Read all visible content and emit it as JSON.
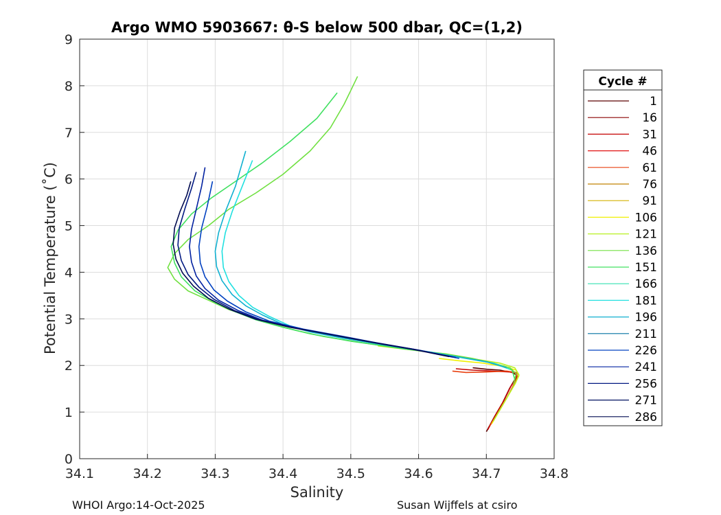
{
  "footer": {
    "left_credit": "WHOI Argo:14-Oct-2025",
    "right_credit": "Susan Wijffels at csiro"
  },
  "chart_data": {
    "type": "line",
    "title": "Argo WMO 5903667: θ-S below 500 dbar,  QC=(1,2)",
    "xlabel": "Salinity",
    "ylabel": "Potential Temperature (˚C)",
    "xlim": [
      34.1,
      34.8
    ],
    "ylim": [
      0,
      9
    ],
    "xticks": [
      34.1,
      34.2,
      34.3,
      34.4,
      34.5,
      34.6,
      34.7,
      34.8
    ],
    "xtick_labels": [
      "34.1",
      "34.2",
      "34.3",
      "34.4",
      "34.5",
      "34.6",
      "34.7",
      "34.8"
    ],
    "yticks": [
      0,
      1,
      2,
      3,
      4,
      5,
      6,
      7,
      8,
      9
    ],
    "ytick_labels": [
      "0",
      "1",
      "2",
      "3",
      "4",
      "5",
      "6",
      "7",
      "8",
      "9"
    ],
    "grid": true,
    "legend": {
      "title": "Cycle #",
      "placement": "outside-right",
      "entries": [
        {
          "label": "1",
          "color": "#5a0000"
        },
        {
          "label": "16",
          "color": "#8a0000"
        },
        {
          "label": "31",
          "color": "#c40000"
        },
        {
          "label": "46",
          "color": "#e01010"
        },
        {
          "label": "61",
          "color": "#e84010"
        },
        {
          "label": "76",
          "color": "#c08000"
        },
        {
          "label": "91",
          "color": "#d4b000"
        },
        {
          "label": "106",
          "color": "#f0f000"
        },
        {
          "label": "121",
          "color": "#b8f020"
        },
        {
          "label": "136",
          "color": "#70e040"
        },
        {
          "label": "151",
          "color": "#40e060"
        },
        {
          "label": "166",
          "color": "#30e0b0"
        },
        {
          "label": "181",
          "color": "#20e0e0"
        },
        {
          "label": "196",
          "color": "#10b0d0"
        },
        {
          "label": "211",
          "color": "#0070a0"
        },
        {
          "label": "226",
          "color": "#0040c0"
        },
        {
          "label": "241",
          "color": "#0020a0"
        },
        {
          "label": "256",
          "color": "#001880"
        },
        {
          "label": "271",
          "color": "#001060"
        },
        {
          "label": "286",
          "color": "#000a50"
        }
      ]
    },
    "series": [
      {
        "color": "#5a0000",
        "x": [
          34.7,
          34.712,
          34.724,
          34.734,
          34.742,
          34.744,
          34.738,
          34.72,
          34.7,
          34.68
        ],
        "y": [
          0.58,
          0.9,
          1.2,
          1.5,
          1.7,
          1.8,
          1.85,
          1.9,
          1.92,
          1.95
        ]
      },
      {
        "color": "#c40000",
        "x": [
          34.702,
          34.714,
          34.726,
          34.736,
          34.744,
          34.745,
          34.735,
          34.71,
          34.68,
          34.655
        ],
        "y": [
          0.62,
          0.95,
          1.25,
          1.55,
          1.72,
          1.82,
          1.86,
          1.88,
          1.9,
          1.93
        ]
      },
      {
        "color": "#e84010",
        "x": [
          34.705,
          34.718,
          34.73,
          34.74,
          34.746,
          34.744,
          34.73,
          34.7,
          34.67,
          34.65
        ],
        "y": [
          0.7,
          1.0,
          1.3,
          1.58,
          1.75,
          1.85,
          1.88,
          1.86,
          1.85,
          1.88
        ]
      },
      {
        "color": "#f0f000",
        "x": [
          34.708,
          34.72,
          34.732,
          34.742,
          34.748,
          34.744,
          34.725,
          34.695,
          34.66,
          34.63
        ],
        "y": [
          0.75,
          1.05,
          1.35,
          1.6,
          1.78,
          1.9,
          1.98,
          2.05,
          2.1,
          2.15
        ]
      },
      {
        "color": "#b8f020",
        "x": [
          34.71,
          34.722,
          34.734,
          34.743,
          34.748,
          34.742,
          34.72,
          34.69,
          34.655,
          34.62,
          34.58,
          34.54
        ],
        "y": [
          0.8,
          1.1,
          1.4,
          1.62,
          1.8,
          1.95,
          2.05,
          2.12,
          2.2,
          2.28,
          2.35,
          2.42
        ]
      },
      {
        "color": "#70e040",
        "x": [
          34.74,
          34.744,
          34.735,
          34.71,
          34.68,
          34.64,
          34.58,
          34.52,
          34.46,
          34.42,
          34.38,
          34.35,
          34.32,
          34.29,
          34.26,
          34.24,
          34.23,
          34.24,
          34.26,
          34.29,
          34.32,
          34.36,
          34.4,
          34.44,
          34.47,
          34.49,
          34.5,
          34.51
        ],
        "y": [
          1.6,
          1.82,
          1.95,
          2.05,
          2.15,
          2.25,
          2.35,
          2.48,
          2.62,
          2.75,
          2.9,
          3.05,
          3.2,
          3.4,
          3.6,
          3.85,
          4.1,
          4.4,
          4.7,
          5.0,
          5.35,
          5.7,
          6.1,
          6.6,
          7.1,
          7.6,
          7.9,
          8.2
        ]
      },
      {
        "color": "#40e060",
        "x": [
          34.742,
          34.738,
          34.71,
          34.67,
          34.62,
          34.56,
          34.5,
          34.44,
          34.4,
          34.36,
          34.33,
          34.3,
          34.27,
          34.25,
          34.24,
          34.235,
          34.245,
          34.265,
          34.295,
          34.33,
          34.37,
          34.41,
          34.45,
          34.48
        ],
        "y": [
          1.7,
          1.9,
          2.05,
          2.15,
          2.28,
          2.4,
          2.52,
          2.68,
          2.82,
          2.98,
          3.15,
          3.35,
          3.6,
          3.9,
          4.2,
          4.55,
          4.9,
          5.25,
          5.6,
          5.95,
          6.35,
          6.8,
          7.3,
          7.85
        ]
      },
      {
        "color": "#20e0e0",
        "x": [
          34.735,
          34.71,
          34.67,
          34.62,
          34.56,
          34.5,
          34.45,
          34.41,
          34.38,
          34.355,
          34.335,
          34.32,
          34.312,
          34.31,
          34.315,
          34.325,
          34.34,
          34.355
        ],
        "y": [
          1.92,
          2.05,
          2.15,
          2.28,
          2.42,
          2.56,
          2.7,
          2.85,
          3.05,
          3.25,
          3.5,
          3.8,
          4.1,
          4.45,
          4.85,
          5.3,
          5.85,
          6.4
        ]
      },
      {
        "color": "#10b0d0",
        "x": [
          34.73,
          34.7,
          34.66,
          34.61,
          34.55,
          34.49,
          34.44,
          34.4,
          34.37,
          34.345,
          34.325,
          34.31,
          34.302,
          34.3,
          34.305,
          34.315,
          34.33,
          34.345
        ],
        "y": [
          1.95,
          2.08,
          2.18,
          2.3,
          2.44,
          2.58,
          2.72,
          2.88,
          3.08,
          3.28,
          3.52,
          3.82,
          4.12,
          4.45,
          4.85,
          5.3,
          5.85,
          6.6
        ]
      },
      {
        "color": "#0040c0",
        "x": [
          34.66,
          34.61,
          34.55,
          34.49,
          34.43,
          34.38,
          34.345,
          34.318,
          34.298,
          34.285,
          34.278,
          34.276,
          34.28,
          34.288,
          34.296
        ],
        "y": [
          2.15,
          2.3,
          2.45,
          2.62,
          2.78,
          2.95,
          3.15,
          3.38,
          3.62,
          3.9,
          4.2,
          4.55,
          4.95,
          5.4,
          5.95
        ]
      },
      {
        "color": "#0020a0",
        "x": [
          34.655,
          34.6,
          34.54,
          34.48,
          34.42,
          34.37,
          34.335,
          34.305,
          34.285,
          34.272,
          34.265,
          34.262,
          34.265,
          34.272,
          34.28,
          34.285
        ],
        "y": [
          2.17,
          2.33,
          2.48,
          2.64,
          2.8,
          2.97,
          3.17,
          3.4,
          3.65,
          3.92,
          4.22,
          4.55,
          4.92,
          5.35,
          5.85,
          6.25
        ]
      },
      {
        "color": "#001880",
        "x": [
          34.65,
          34.595,
          34.535,
          34.475,
          34.415,
          34.365,
          34.328,
          34.298,
          34.276,
          34.26,
          34.25,
          34.245,
          34.247,
          34.255,
          34.265,
          34.272
        ],
        "y": [
          2.18,
          2.34,
          2.49,
          2.65,
          2.81,
          2.98,
          3.18,
          3.42,
          3.68,
          3.95,
          4.25,
          4.58,
          4.95,
          5.35,
          5.8,
          6.15
        ]
      },
      {
        "color": "#000a50",
        "x": [
          34.645,
          34.59,
          34.53,
          34.47,
          34.41,
          34.36,
          34.322,
          34.29,
          34.268,
          34.252,
          34.242,
          34.238,
          34.24,
          34.248,
          34.258,
          34.264
        ],
        "y": [
          2.19,
          2.35,
          2.5,
          2.66,
          2.82,
          2.99,
          3.2,
          3.44,
          3.7,
          3.98,
          4.28,
          4.6,
          4.95,
          5.3,
          5.65,
          5.95
        ]
      }
    ]
  }
}
